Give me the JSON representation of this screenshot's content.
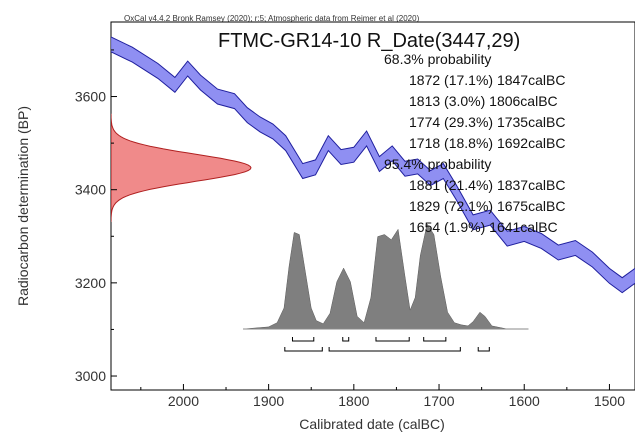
{
  "credit": "OxCal v4.4.2 Bronk Ramsey (2020); r:5; Atmospheric data from Reimer et al (2020)",
  "colors": {
    "curve_fill": "#7b7bf0",
    "curve_edge": "#1f1f9e",
    "measurement_fill": "#f08a8a",
    "measurement_edge": "#b02020",
    "posterior_fill": "#7f7f7f"
  },
  "chart_data": {
    "type": "area",
    "title": "FTMC-GR14-10 R_Date(3447,29)",
    "xlabel": "Calibrated date (calBC)",
    "ylabel": "Radiocarbon determination (BP)",
    "xlim": [
      2085,
      1470
    ],
    "ylim": [
      2970,
      3760
    ],
    "x_reversed": true,
    "x_ticks": [
      2000,
      1900,
      1800,
      1700,
      1600,
      1500
    ],
    "y_ticks": [
      3000,
      3200,
      3400,
      3600
    ],
    "measurement": {
      "mean_bp": 3447,
      "sd": 29
    },
    "calibration_curve": [
      {
        "x": 2085,
        "y": 3712
      },
      {
        "x": 2060,
        "y": 3690
      },
      {
        "x": 2030,
        "y": 3655
      },
      {
        "x": 2010,
        "y": 3625
      },
      {
        "x": 1995,
        "y": 3660
      },
      {
        "x": 1980,
        "y": 3630
      },
      {
        "x": 1960,
        "y": 3600
      },
      {
        "x": 1940,
        "y": 3590
      },
      {
        "x": 1925,
        "y": 3560
      },
      {
        "x": 1910,
        "y": 3540
      },
      {
        "x": 1895,
        "y": 3525
      },
      {
        "x": 1880,
        "y": 3500
      },
      {
        "x": 1860,
        "y": 3440
      },
      {
        "x": 1845,
        "y": 3448
      },
      {
        "x": 1830,
        "y": 3500
      },
      {
        "x": 1815,
        "y": 3470
      },
      {
        "x": 1800,
        "y": 3475
      },
      {
        "x": 1785,
        "y": 3510
      },
      {
        "x": 1770,
        "y": 3455
      },
      {
        "x": 1755,
        "y": 3478
      },
      {
        "x": 1740,
        "y": 3445
      },
      {
        "x": 1725,
        "y": 3450
      },
      {
        "x": 1710,
        "y": 3425
      },
      {
        "x": 1695,
        "y": 3440
      },
      {
        "x": 1680,
        "y": 3395
      },
      {
        "x": 1660,
        "y": 3330
      },
      {
        "x": 1640,
        "y": 3340
      },
      {
        "x": 1620,
        "y": 3295
      },
      {
        "x": 1600,
        "y": 3305
      },
      {
        "x": 1580,
        "y": 3290
      },
      {
        "x": 1560,
        "y": 3265
      },
      {
        "x": 1540,
        "y": 3275
      },
      {
        "x": 1520,
        "y": 3250
      },
      {
        "x": 1500,
        "y": 3215
      },
      {
        "x": 1485,
        "y": 3195
      },
      {
        "x": 1470,
        "y": 3215
      }
    ],
    "curve_band_halfwidth_bp": 16,
    "posterior_distribution": [
      {
        "x": 1930,
        "y": 0
      },
      {
        "x": 1900,
        "y": 0.02
      },
      {
        "x": 1890,
        "y": 0.06
      },
      {
        "x": 1882,
        "y": 0.2
      },
      {
        "x": 1876,
        "y": 0.6
      },
      {
        "x": 1870,
        "y": 0.92
      },
      {
        "x": 1864,
        "y": 0.9
      },
      {
        "x": 1858,
        "y": 0.6
      },
      {
        "x": 1850,
        "y": 0.2
      },
      {
        "x": 1844,
        "y": 0.08
      },
      {
        "x": 1836,
        "y": 0.05
      },
      {
        "x": 1828,
        "y": 0.15
      },
      {
        "x": 1820,
        "y": 0.45
      },
      {
        "x": 1812,
        "y": 0.58
      },
      {
        "x": 1804,
        "y": 0.45
      },
      {
        "x": 1796,
        "y": 0.12
      },
      {
        "x": 1788,
        "y": 0.06
      },
      {
        "x": 1780,
        "y": 0.3
      },
      {
        "x": 1772,
        "y": 0.88
      },
      {
        "x": 1764,
        "y": 0.9
      },
      {
        "x": 1756,
        "y": 0.85
      },
      {
        "x": 1748,
        "y": 0.95
      },
      {
        "x": 1740,
        "y": 0.5
      },
      {
        "x": 1734,
        "y": 0.18
      },
      {
        "x": 1728,
        "y": 0.3
      },
      {
        "x": 1722,
        "y": 0.7
      },
      {
        "x": 1714,
        "y": 1.0
      },
      {
        "x": 1706,
        "y": 0.9
      },
      {
        "x": 1698,
        "y": 0.5
      },
      {
        "x": 1690,
        "y": 0.16
      },
      {
        "x": 1682,
        "y": 0.06
      },
      {
        "x": 1674,
        "y": 0.04
      },
      {
        "x": 1666,
        "y": 0.03
      },
      {
        "x": 1660,
        "y": 0.07
      },
      {
        "x": 1652,
        "y": 0.16
      },
      {
        "x": 1646,
        "y": 0.12
      },
      {
        "x": 1638,
        "y": 0.03
      },
      {
        "x": 1620,
        "y": 0.0
      },
      {
        "x": 1595,
        "y": 0.0
      }
    ],
    "ranges_68": [
      [
        1872,
        1847
      ],
      [
        1813,
        1806
      ],
      [
        1774,
        1735
      ],
      [
        1718,
        1692
      ]
    ],
    "ranges_95": [
      [
        1881,
        1837
      ],
      [
        1829,
        1675
      ],
      [
        1654,
        1641
      ]
    ],
    "annotations": [
      "68.3% probability",
      "1872 (17.1%) 1847calBC",
      "1813 (3.0%) 1806calBC",
      "1774 (29.3%) 1735calBC",
      "1718 (18.8%) 1692calBC",
      "95.4% probability",
      "1881 (21.4%) 1837calBC",
      "1829 (72.1%) 1675calBC",
      "1654 (1.9%) 1641calBC"
    ]
  }
}
